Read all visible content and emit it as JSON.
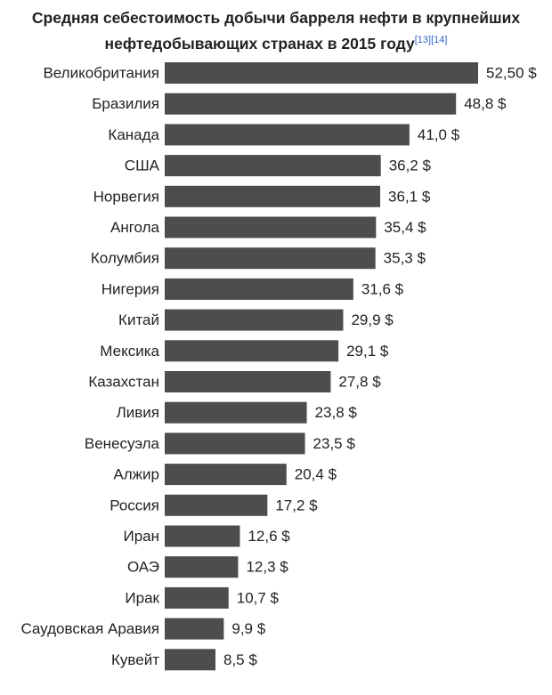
{
  "title": {
    "line1": "Средняя себестоимость добычи барреля нефти в крупнейших",
    "line2": "нефтедобывающих странах в 2015 году",
    "refs": [
      "[13]",
      "[14]"
    ]
  },
  "colors": {
    "bar": "#4d4d4d",
    "text": "#222222",
    "ref_link": "#3366cc"
  },
  "chart_data": {
    "type": "bar",
    "orientation": "horizontal",
    "title": "Средняя себестоимость добычи барреля нефти в крупнейших нефтедобывающих странах в 2015 году",
    "unit_suffix": " $",
    "categories": [
      "Великобритания",
      "Бразилия",
      "Канада",
      "США",
      "Норвегия",
      "Ангола",
      "Колумбия",
      "Нигерия",
      "Китай",
      "Мексика",
      "Казахстан",
      "Ливия",
      "Венесуэла",
      "Алжир",
      "Россия",
      "Иран",
      "ОАЭ",
      "Ирак",
      "Саудовская Аравия",
      "Кувейт"
    ],
    "values": [
      52.5,
      48.8,
      41.0,
      36.2,
      36.1,
      35.4,
      35.3,
      31.6,
      29.9,
      29.1,
      27.8,
      23.8,
      23.5,
      20.4,
      17.2,
      12.6,
      12.3,
      10.7,
      9.9,
      8.5
    ],
    "value_labels": [
      "52,50 $",
      "48,8 $",
      "41,0 $",
      "36,2 $",
      "36,1 $",
      "35,4 $",
      "35,3 $",
      "31,6 $",
      "29,9 $",
      "29,1 $",
      "27,8 $",
      "23,8 $",
      "23,5 $",
      "20,4 $",
      "17,2 $",
      "12,6 $",
      "12,3 $",
      "10,7 $",
      "9,9 $",
      "8,5 $"
    ],
    "xlim": [
      0,
      52.5
    ],
    "grid": false,
    "legend": "none"
  }
}
